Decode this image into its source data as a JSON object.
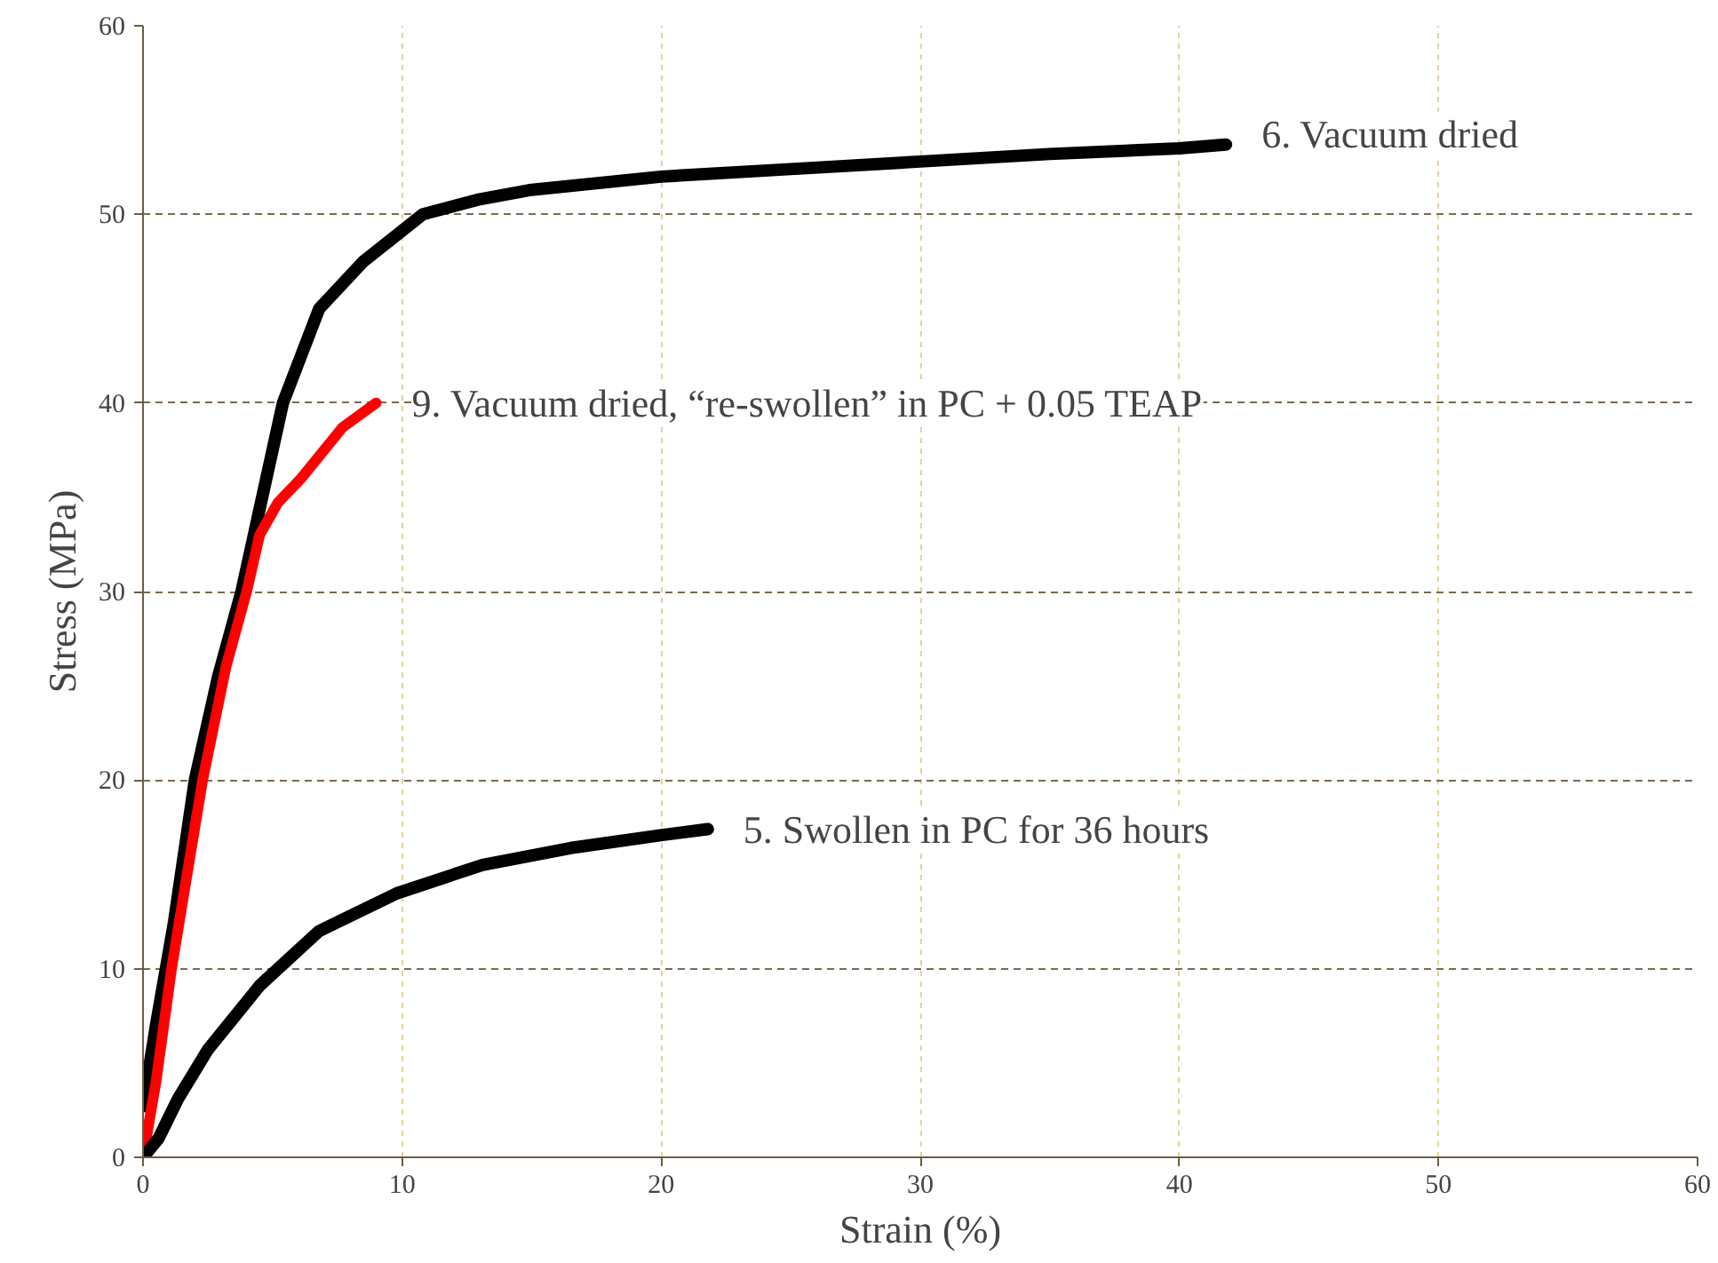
{
  "chart_data": {
    "type": "line",
    "xlabel": "Strain (%)",
    "ylabel": "Stress (MPa)",
    "xlim": [
      0,
      60
    ],
    "ylim": [
      0,
      60
    ],
    "xticks": [
      0,
      10,
      20,
      30,
      40,
      50,
      60
    ],
    "yticks": [
      0,
      10,
      20,
      30,
      40,
      50,
      60
    ],
    "grid": true,
    "legend": false,
    "marker": "none",
    "line_style": "solid",
    "series": [
      {
        "name": "6. Vacuum dried",
        "color": "#000000",
        "x": [
          0,
          0.5,
          1.2,
          2.0,
          2.9,
          3.8,
          4.6,
          5.4,
          6.8,
          8.5,
          10.8,
          13,
          15,
          20,
          25,
          30,
          35,
          40,
          41.8
        ],
        "values": [
          2.7,
          7,
          12.5,
          20,
          25.5,
          30,
          35,
          40,
          45,
          47.5,
          50,
          50.8,
          51.3,
          52,
          52.4,
          52.8,
          53.2,
          53.5,
          53.7
        ]
      },
      {
        "name": "9. Vacuum dried, “re-swollen” in PC + 0.05 TEAP",
        "color": "#ff0000",
        "x": [
          0,
          0.5,
          1.1,
          2.3,
          3.2,
          4.0,
          4.5,
          5.2,
          6.1,
          7.7,
          9.0
        ],
        "values": [
          0,
          4,
          10,
          20,
          26,
          30,
          33,
          34.7,
          36,
          38.7,
          40
        ]
      },
      {
        "name": "5. Swollen in PC for 36 hours",
        "color": "#000000",
        "x": [
          0,
          0.6,
          1.35,
          2.5,
          4.5,
          6.8,
          9.8,
          13.1,
          16.5,
          20.1,
          21.8
        ],
        "values": [
          0,
          1,
          3.1,
          5.7,
          9.1,
          12,
          14,
          15.5,
          16.4,
          17.1,
          17.4
        ]
      }
    ]
  }
}
